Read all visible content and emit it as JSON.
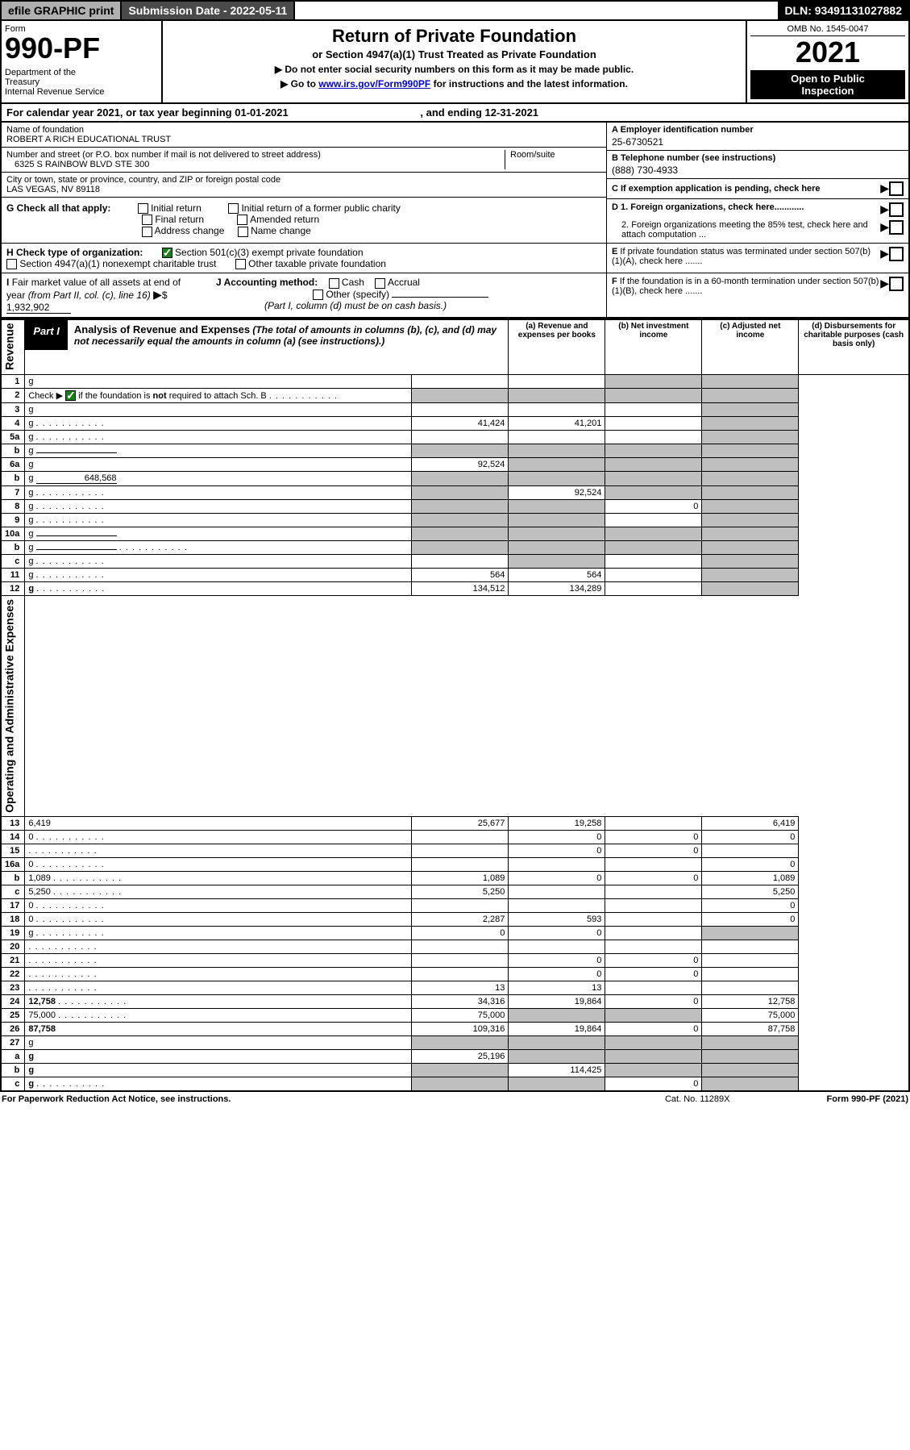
{
  "topbar": {
    "efile": "efile GRAPHIC print",
    "subdate_label": "Submission Date - ",
    "subdate": "2022-05-11",
    "dln_label": "DLN: ",
    "dln": "93491131027882"
  },
  "header": {
    "form_label": "Form",
    "form_num": "990-PF",
    "dept": "Department of the Treasury\nInternal Revenue Service",
    "title": "Return of Private Foundation",
    "subtitle": "or Section 4947(a)(1) Trust Treated as Private Foundation",
    "instr1": "▶ Do not enter social security numbers on this form as it may be made public.",
    "instr2_pre": "▶ Go to ",
    "instr2_link": "www.irs.gov/Form990PF",
    "instr2_post": " for instructions and the latest information.",
    "omb": "OMB No. 1545-0047",
    "year": "2021",
    "open": "Open to Public Inspection"
  },
  "calendar": {
    "text1": "For calendar year 2021, or tax year beginning ",
    "begin": "01-01-2021",
    "text2": " , and ending ",
    "end": "12-31-2021"
  },
  "info": {
    "name_label": "Name of foundation",
    "name": "ROBERT A RICH EDUCATIONAL TRUST",
    "addr_label": "Number and street (or P.O. box number if mail is not delivered to street address)",
    "addr": "6325 S RAINBOW BLVD STE 300",
    "room_label": "Room/suite",
    "city_label": "City or town, state or province, country, and ZIP or foreign postal code",
    "city": "LAS VEGAS, NV  89118",
    "a_label": "A Employer identification number",
    "a_val": "25-6730521",
    "b_label": "B Telephone number (see instructions)",
    "b_val": "(888) 730-4933",
    "c_label": "C If exemption application is pending, check here"
  },
  "checks": {
    "g_label": "G Check all that apply:",
    "g_opts": [
      "Initial return",
      "Final return",
      "Address change",
      "Initial return of a former public charity",
      "Amended return",
      "Name change"
    ],
    "h_label": "H Check type of organization:",
    "h_opt1": "Section 501(c)(3) exempt private foundation",
    "h_opt2": "Section 4947(a)(1) nonexempt charitable trust",
    "h_opt3": "Other taxable private foundation",
    "d1": "D 1. Foreign organizations, check here............",
    "d2": "2. Foreign organizations meeting the 85% test, check here and attach computation ...",
    "e": "E  If private foundation status was terminated under section 507(b)(1)(A), check here .......",
    "i_label": "I Fair market value of all assets at end of year (from Part II, col. (c), line 16)",
    "i_val": "1,932,902",
    "j_label": "J Accounting method:",
    "j_opts": [
      "Cash",
      "Accrual"
    ],
    "j_other": "Other (specify)",
    "j_note": "(Part I, column (d) must be on cash basis.)",
    "f": "F  If the foundation is in a 60-month termination under section 507(b)(1)(B), check here ......."
  },
  "part1": {
    "tag": "Part I",
    "title": "Analysis of Revenue and Expenses",
    "title_paren": "(The total of amounts in columns (b), (c), and (d) may not necessarily equal the amounts in column (a) (see instructions).)",
    "col_a": "(a) Revenue and expenses per books",
    "col_b": "(b) Net investment income",
    "col_c": "(c) Adjusted net income",
    "col_d": "(d) Disbursements for charitable purposes (cash basis only)",
    "side_rev": "Revenue",
    "side_exp": "Operating and Administrative Expenses"
  },
  "rows": [
    {
      "n": "1",
      "d": "g",
      "a": "",
      "b": "",
      "c": "g"
    },
    {
      "n": "2",
      "d": "g",
      "dots": true,
      "a": "g",
      "b": "g",
      "c": "g",
      "checked": true
    },
    {
      "n": "3",
      "d": "g",
      "a": "",
      "b": "",
      "c": ""
    },
    {
      "n": "4",
      "d": "g",
      "dots": true,
      "a": "41,424",
      "b": "41,201",
      "c": ""
    },
    {
      "n": "5a",
      "d": "g",
      "dots": true,
      "a": "",
      "b": "",
      "c": ""
    },
    {
      "n": "b",
      "d": "g",
      "inline": true,
      "a": "g",
      "b": "g",
      "c": "g"
    },
    {
      "n": "6a",
      "d": "g",
      "a": "92,524",
      "b": "g",
      "c": "g"
    },
    {
      "n": "b",
      "d": "g",
      "inline": true,
      "inline_val": "648,568",
      "a": "g",
      "b": "g",
      "c": "g"
    },
    {
      "n": "7",
      "d": "g",
      "dots": true,
      "a": "g",
      "b": "92,524",
      "c": "g"
    },
    {
      "n": "8",
      "d": "g",
      "dots": true,
      "a": "g",
      "b": "g",
      "c": "0"
    },
    {
      "n": "9",
      "d": "g",
      "dots": true,
      "a": "g",
      "b": "g",
      "c": ""
    },
    {
      "n": "10a",
      "d": "g",
      "inline": true,
      "a": "g",
      "b": "g",
      "c": "g"
    },
    {
      "n": "b",
      "d": "g",
      "dots": true,
      "inline": true,
      "a": "g",
      "b": "g",
      "c": "g"
    },
    {
      "n": "c",
      "d": "g",
      "dots": true,
      "a": "",
      "b": "g",
      "c": ""
    },
    {
      "n": "11",
      "d": "g",
      "dots": true,
      "a": "564",
      "b": "564",
      "c": ""
    },
    {
      "n": "12",
      "d": "g",
      "dots": true,
      "bold": true,
      "a": "134,512",
      "b": "134,289",
      "c": ""
    },
    {
      "n": "13",
      "d": "6,419",
      "a": "25,677",
      "b": "19,258",
      "c": ""
    },
    {
      "n": "14",
      "d": "0",
      "dots": true,
      "a": "",
      "b": "0",
      "c": "0"
    },
    {
      "n": "15",
      "d": "",
      "dots": true,
      "a": "",
      "b": "0",
      "c": "0"
    },
    {
      "n": "16a",
      "d": "0",
      "dots": true,
      "a": "",
      "b": "",
      "c": ""
    },
    {
      "n": "b",
      "d": "1,089",
      "dots": true,
      "a": "1,089",
      "b": "0",
      "c": "0"
    },
    {
      "n": "c",
      "d": "5,250",
      "dots": true,
      "a": "5,250",
      "b": "",
      "c": ""
    },
    {
      "n": "17",
      "d": "0",
      "dots": true,
      "a": "",
      "b": "",
      "c": ""
    },
    {
      "n": "18",
      "d": "0",
      "dots": true,
      "a": "2,287",
      "b": "593",
      "c": ""
    },
    {
      "n": "19",
      "d": "g",
      "dots": true,
      "a": "0",
      "b": "0",
      "c": ""
    },
    {
      "n": "20",
      "d": "",
      "dots": true,
      "a": "",
      "b": "",
      "c": ""
    },
    {
      "n": "21",
      "d": "",
      "dots": true,
      "a": "",
      "b": "0",
      "c": "0"
    },
    {
      "n": "22",
      "d": "",
      "dots": true,
      "a": "",
      "b": "0",
      "c": "0"
    },
    {
      "n": "23",
      "d": "",
      "dots": true,
      "a": "13",
      "b": "13",
      "c": ""
    },
    {
      "n": "24",
      "d": "12,758",
      "dots": true,
      "bold": true,
      "a": "34,316",
      "b": "19,864",
      "c": "0"
    },
    {
      "n": "25",
      "d": "75,000",
      "dots": true,
      "a": "75,000",
      "b": "g",
      "c": "g"
    },
    {
      "n": "26",
      "d": "87,758",
      "bold": true,
      "a": "109,316",
      "b": "19,864",
      "c": "0"
    },
    {
      "n": "27",
      "d": "g",
      "a": "g",
      "b": "g",
      "c": "g"
    },
    {
      "n": "a",
      "d": "g",
      "bold": true,
      "a": "25,196",
      "b": "g",
      "c": "g"
    },
    {
      "n": "b",
      "d": "g",
      "bold": true,
      "a": "g",
      "b": "114,425",
      "c": "g"
    },
    {
      "n": "c",
      "d": "g",
      "dots": true,
      "bold": true,
      "a": "g",
      "b": "g",
      "c": "0"
    }
  ],
  "footer": {
    "left": "For Paperwork Reduction Act Notice, see instructions.",
    "mid": "Cat. No. 11289X",
    "right": "Form 990-PF (2021)"
  },
  "colors": {
    "link": "#0000cc",
    "greycell": "#bfbfbf",
    "checked": "#1a7f1a",
    "darkbar": "#4a4a4a"
  }
}
